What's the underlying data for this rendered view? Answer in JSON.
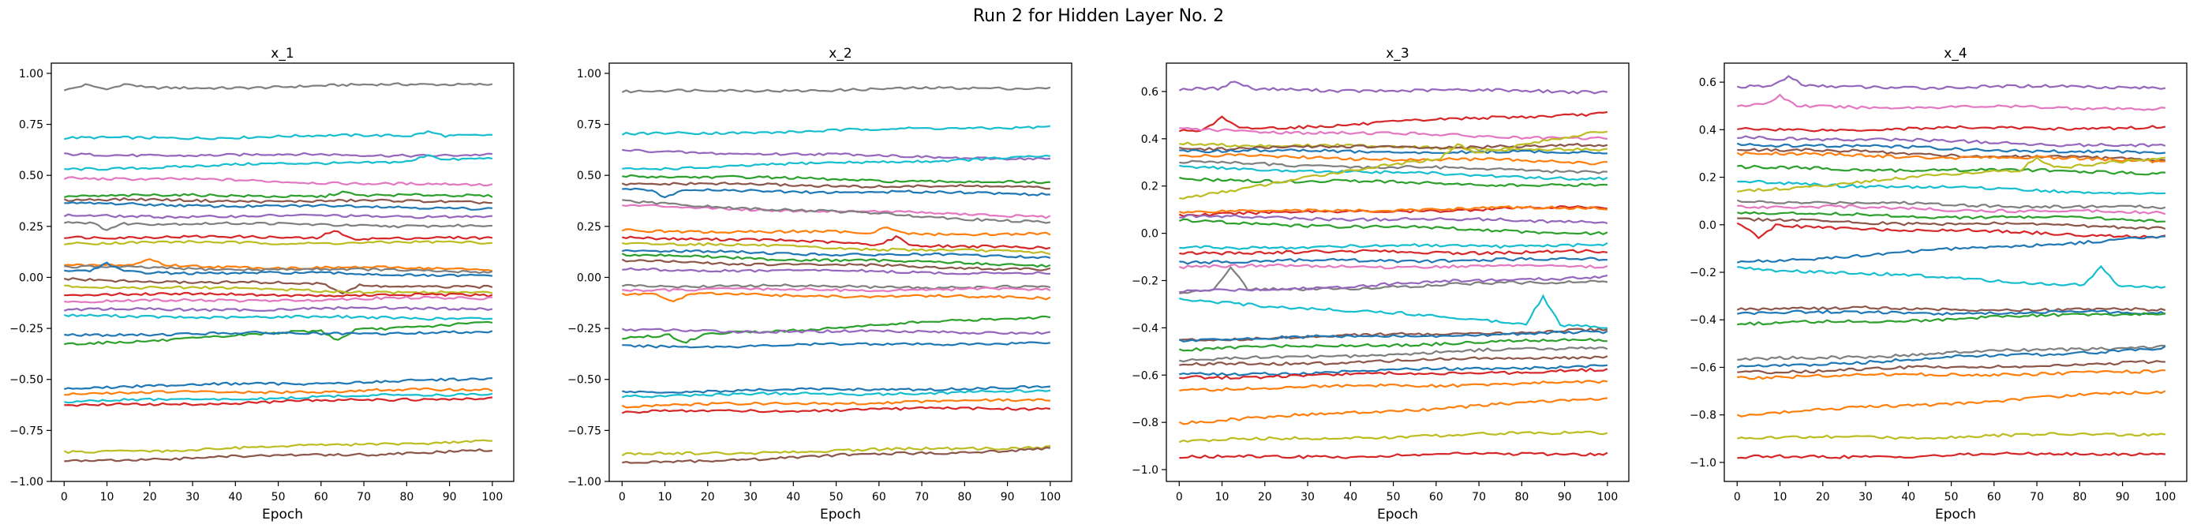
{
  "figure": {
    "suptitle": "Run 2 for Hidden Layer No. 2"
  },
  "chart_data": [
    {
      "type": "line",
      "title": "x_1",
      "xlabel": "Epoch",
      "xlim": [
        -3,
        105
      ],
      "ylim": [
        -1.0,
        1.05
      ],
      "xticks": [
        0,
        10,
        20,
        30,
        40,
        50,
        60,
        70,
        80,
        90,
        100
      ],
      "yticks": [
        1.0,
        0.75,
        0.5,
        0.25,
        0.0,
        -0.25,
        -0.5,
        -0.75,
        -1.0
      ],
      "ytick_labels": [
        "1.00",
        "0.75",
        "0.50",
        "0.25",
        "0.00",
        "−0.25",
        "−0.50",
        "−0.75",
        "−1.00"
      ],
      "series": [
        {
          "color": "#7f7f7f",
          "start": 0.92,
          "end": 0.95,
          "bumps": [
            [
              5,
              0.02
            ],
            [
              15,
              0.02
            ]
          ]
        },
        {
          "color": "#17becf",
          "start": 0.68,
          "end": 0.7,
          "bumps": [
            [
              85,
              0.02
            ]
          ]
        },
        {
          "color": "#9467bd",
          "start": 0.6,
          "end": 0.6
        },
        {
          "color": "#17becf",
          "start": 0.53,
          "end": 0.58,
          "bumps": [
            [
              85,
              0.03
            ]
          ]
        },
        {
          "color": "#e377c2",
          "start": 0.49,
          "end": 0.45
        },
        {
          "color": "#2ca02c",
          "start": 0.4,
          "end": 0.4,
          "bumps": [
            [
              65,
              0.02
            ]
          ]
        },
        {
          "color": "#8c564b",
          "start": 0.38,
          "end": 0.37
        },
        {
          "color": "#1f77b4",
          "start": 0.36,
          "end": 0.34
        },
        {
          "color": "#9467bd",
          "start": 0.3,
          "end": 0.3
        },
        {
          "color": "#7f7f7f",
          "start": 0.27,
          "end": 0.25,
          "bumps": [
            [
              10,
              -0.03
            ]
          ]
        },
        {
          "color": "#d62728",
          "start": 0.2,
          "end": 0.19,
          "bumps": [
            [
              63,
              0.04
            ]
          ]
        },
        {
          "color": "#bcbd22",
          "start": 0.17,
          "end": 0.17
        },
        {
          "color": "#ff7f0e",
          "start": 0.06,
          "end": 0.04,
          "bumps": [
            [
              20,
              0.03
            ]
          ]
        },
        {
          "color": "#7f7f7f",
          "start": 0.05,
          "end": 0.03
        },
        {
          "color": "#1f77b4",
          "start": 0.03,
          "end": 0.01,
          "bumps": [
            [
              10,
              0.04
            ]
          ]
        },
        {
          "color": "#8c564b",
          "start": -0.01,
          "end": -0.05,
          "bumps": [
            [
              65,
              -0.04
            ]
          ]
        },
        {
          "color": "#bcbd22",
          "start": -0.04,
          "end": -0.08
        },
        {
          "color": "#d62728",
          "start": -0.08,
          "end": -0.09
        },
        {
          "color": "#e377c2",
          "start": -0.12,
          "end": -0.1
        },
        {
          "color": "#9467bd",
          "start": -0.16,
          "end": -0.15
        },
        {
          "color": "#17becf",
          "start": -0.19,
          "end": -0.2
        },
        {
          "color": "#2ca02c",
          "start": -0.33,
          "end": -0.22,
          "bumps": [
            [
              64,
              -0.05
            ]
          ]
        },
        {
          "color": "#1f77b4",
          "start": -0.28,
          "end": -0.27
        },
        {
          "color": "#1f77b4",
          "start": -0.54,
          "end": -0.5
        },
        {
          "color": "#ff7f0e",
          "start": -0.57,
          "end": -0.55
        },
        {
          "color": "#17becf",
          "start": -0.61,
          "end": -0.57
        },
        {
          "color": "#d62728",
          "start": -0.63,
          "end": -0.59
        },
        {
          "color": "#bcbd22",
          "start": -0.86,
          "end": -0.8
        },
        {
          "color": "#8c564b",
          "start": -0.9,
          "end": -0.85
        }
      ]
    },
    {
      "type": "line",
      "title": "x_2",
      "xlabel": "Epoch",
      "xlim": [
        -3,
        105
      ],
      "ylim": [
        -1.0,
        1.05
      ],
      "xticks": [
        0,
        10,
        20,
        30,
        40,
        50,
        60,
        70,
        80,
        90,
        100
      ],
      "yticks": [
        1.0,
        0.75,
        0.5,
        0.25,
        0.0,
        -0.25,
        -0.5,
        -0.75,
        -1.0
      ],
      "ytick_labels": [
        "1.00",
        "0.75",
        "0.50",
        "0.25",
        "0.00",
        "−0.25",
        "−0.50",
        "−0.75",
        "−1.00"
      ],
      "series": [
        {
          "color": "#7f7f7f",
          "start": 0.91,
          "end": 0.93
        },
        {
          "color": "#17becf",
          "start": 0.7,
          "end": 0.74
        },
        {
          "color": "#9467bd",
          "start": 0.62,
          "end": 0.58
        },
        {
          "color": "#17becf",
          "start": 0.53,
          "end": 0.59
        },
        {
          "color": "#2ca02c",
          "start": 0.5,
          "end": 0.46
        },
        {
          "color": "#8c564b",
          "start": 0.46,
          "end": 0.44
        },
        {
          "color": "#1f77b4",
          "start": 0.43,
          "end": 0.41,
          "bumps": [
            [
              10,
              -0.04
            ]
          ]
        },
        {
          "color": "#e377c2",
          "start": 0.35,
          "end": 0.3
        },
        {
          "color": "#7f7f7f",
          "start": 0.37,
          "end": 0.27
        },
        {
          "color": "#ff7f0e",
          "start": 0.23,
          "end": 0.21,
          "bumps": [
            [
              62,
              0.03
            ]
          ]
        },
        {
          "color": "#d62728",
          "start": 0.2,
          "end": 0.14,
          "bumps": [
            [
              64,
              0.04
            ]
          ]
        },
        {
          "color": "#bcbd22",
          "start": 0.17,
          "end": 0.12
        },
        {
          "color": "#1f77b4",
          "start": 0.13,
          "end": 0.1
        },
        {
          "color": "#2ca02c",
          "start": 0.11,
          "end": 0.06
        },
        {
          "color": "#8c564b",
          "start": 0.08,
          "end": 0.04
        },
        {
          "color": "#9467bd",
          "start": 0.04,
          "end": 0.02
        },
        {
          "color": "#7f7f7f",
          "start": -0.04,
          "end": -0.05
        },
        {
          "color": "#e377c2",
          "start": -0.06,
          "end": -0.06
        },
        {
          "color": "#ff7f0e",
          "start": -0.08,
          "end": -0.1,
          "bumps": [
            [
              12,
              -0.04
            ]
          ]
        },
        {
          "color": "#2ca02c",
          "start": -0.3,
          "end": -0.19,
          "bumps": [
            [
              15,
              -0.04
            ]
          ]
        },
        {
          "color": "#9467bd",
          "start": -0.26,
          "end": -0.27
        },
        {
          "color": "#1f77b4",
          "start": -0.34,
          "end": -0.32
        },
        {
          "color": "#1f77b4",
          "start": -0.56,
          "end": -0.54
        },
        {
          "color": "#17becf",
          "start": -0.58,
          "end": -0.56
        },
        {
          "color": "#ff7f0e",
          "start": -0.63,
          "end": -0.6
        },
        {
          "color": "#d62728",
          "start": -0.66,
          "end": -0.64
        },
        {
          "color": "#bcbd22",
          "start": -0.87,
          "end": -0.83
        },
        {
          "color": "#8c564b",
          "start": -0.91,
          "end": -0.84
        }
      ]
    },
    {
      "type": "line",
      "title": "x_3",
      "xlabel": "Epoch",
      "xlim": [
        -3,
        105
      ],
      "ylim": [
        -1.05,
        0.72
      ],
      "xticks": [
        0,
        10,
        20,
        30,
        40,
        50,
        60,
        70,
        80,
        90,
        100
      ],
      "yticks": [
        0.6,
        0.4,
        0.2,
        0.0,
        -0.2,
        -0.4,
        -0.6,
        -0.8,
        -1.0
      ],
      "ytick_labels": [
        "0.6",
        "0.4",
        "0.2",
        "0.0",
        "−0.2",
        "−0.4",
        "−0.6",
        "−0.8",
        "−1.0"
      ],
      "series": [
        {
          "color": "#9467bd",
          "start": 0.61,
          "end": 0.6,
          "bumps": [
            [
              13,
              0.03
            ]
          ]
        },
        {
          "color": "#d62728",
          "start": 0.43,
          "end": 0.51,
          "bumps": [
            [
              10,
              0.05
            ]
          ]
        },
        {
          "color": "#e377c2",
          "start": 0.44,
          "end": 0.4
        },
        {
          "color": "#bcbd22",
          "start": 0.38,
          "end": 0.35
        },
        {
          "color": "#8c564b",
          "start": 0.36,
          "end": 0.37
        },
        {
          "color": "#1f77b4",
          "start": 0.35,
          "end": 0.34
        },
        {
          "color": "#ff7f0e",
          "start": 0.33,
          "end": 0.3
        },
        {
          "color": "#7f7f7f",
          "start": 0.3,
          "end": 0.26
        },
        {
          "color": "#17becf",
          "start": 0.28,
          "end": 0.23
        },
        {
          "color": "#2ca02c",
          "start": 0.23,
          "end": 0.2
        },
        {
          "color": "#bcbd22",
          "start": 0.15,
          "end": 0.43,
          "bumps": [
            [
              65,
              0.05
            ]
          ]
        },
        {
          "color": "#d62728",
          "start": 0.08,
          "end": 0.11
        },
        {
          "color": "#ff7f0e",
          "start": 0.09,
          "end": 0.11
        },
        {
          "color": "#9467bd",
          "start": 0.07,
          "end": 0.05
        },
        {
          "color": "#2ca02c",
          "start": 0.05,
          "end": 0.0
        },
        {
          "color": "#17becf",
          "start": -0.06,
          "end": -0.05
        },
        {
          "color": "#d62728",
          "start": -0.08,
          "end": -0.08
        },
        {
          "color": "#1f77b4",
          "start": -0.12,
          "end": -0.11
        },
        {
          "color": "#e377c2",
          "start": -0.14,
          "end": -0.14
        },
        {
          "color": "#7f7f7f",
          "start": -0.25,
          "end": -0.2,
          "bumps": [
            [
              12,
              0.1
            ]
          ]
        },
        {
          "color": "#9467bd",
          "start": -0.25,
          "end": -0.18
        },
        {
          "color": "#17becf",
          "start": -0.28,
          "end": -0.4,
          "bumps": [
            [
              85,
              0.12
            ]
          ]
        },
        {
          "color": "#8c564b",
          "start": -0.45,
          "end": -0.41
        },
        {
          "color": "#1f77b4",
          "start": -0.45,
          "end": -0.42
        },
        {
          "color": "#2ca02c",
          "start": -0.49,
          "end": -0.45
        },
        {
          "color": "#7f7f7f",
          "start": -0.54,
          "end": -0.48
        },
        {
          "color": "#8c564b",
          "start": -0.56,
          "end": -0.52
        },
        {
          "color": "#1f77b4",
          "start": -0.6,
          "end": -0.56
        },
        {
          "color": "#d62728",
          "start": -0.61,
          "end": -0.58
        },
        {
          "color": "#ff7f0e",
          "start": -0.66,
          "end": -0.63
        },
        {
          "color": "#ff7f0e",
          "start": -0.8,
          "end": -0.7
        },
        {
          "color": "#bcbd22",
          "start": -0.88,
          "end": -0.84
        },
        {
          "color": "#d62728",
          "start": -0.95,
          "end": -0.93
        }
      ]
    },
    {
      "type": "line",
      "title": "x_4",
      "xlabel": "Epoch",
      "xlim": [
        -3,
        105
      ],
      "ylim": [
        -1.08,
        0.68
      ],
      "xticks": [
        0,
        10,
        20,
        30,
        40,
        50,
        60,
        70,
        80,
        90,
        100
      ],
      "yticks": [
        0.6,
        0.4,
        0.2,
        0.0,
        -0.2,
        -0.4,
        -0.6,
        -0.8,
        -1.0
      ],
      "ytick_labels": [
        "0.6",
        "0.4",
        "0.2",
        "0.0",
        "−0.2",
        "−0.4",
        "−0.6",
        "−0.8",
        "−1.0"
      ],
      "series": [
        {
          "color": "#9467bd",
          "start": 0.58,
          "end": 0.58,
          "bumps": [
            [
              12,
              0.04
            ]
          ]
        },
        {
          "color": "#e377c2",
          "start": 0.5,
          "end": 0.49,
          "bumps": [
            [
              10,
              0.04
            ]
          ]
        },
        {
          "color": "#d62728",
          "start": 0.4,
          "end": 0.41
        },
        {
          "color": "#9467bd",
          "start": 0.37,
          "end": 0.33
        },
        {
          "color": "#1f77b4",
          "start": 0.34,
          "end": 0.3
        },
        {
          "color": "#8c564b",
          "start": 0.32,
          "end": 0.27
        },
        {
          "color": "#ff7f0e",
          "start": 0.3,
          "end": 0.27
        },
        {
          "color": "#2ca02c",
          "start": 0.24,
          "end": 0.22
        },
        {
          "color": "#17becf",
          "start": 0.18,
          "end": 0.13
        },
        {
          "color": "#bcbd22",
          "start": 0.14,
          "end": 0.28,
          "bumps": [
            [
              70,
              0.05
            ]
          ]
        },
        {
          "color": "#7f7f7f",
          "start": 0.1,
          "end": 0.07
        },
        {
          "color": "#e377c2",
          "start": 0.08,
          "end": 0.05
        },
        {
          "color": "#2ca02c",
          "start": 0.05,
          "end": 0.02
        },
        {
          "color": "#8c564b",
          "start": 0.02,
          "end": -0.01
        },
        {
          "color": "#d62728",
          "start": 0.0,
          "end": -0.05,
          "bumps": [
            [
              5,
              -0.06
            ]
          ]
        },
        {
          "color": "#1f77b4",
          "start": -0.16,
          "end": -0.05
        },
        {
          "color": "#17becf",
          "start": -0.18,
          "end": -0.27,
          "bumps": [
            [
              85,
              0.08
            ]
          ]
        },
        {
          "color": "#8c564b",
          "start": -0.35,
          "end": -0.36
        },
        {
          "color": "#1f77b4",
          "start": -0.37,
          "end": -0.37
        },
        {
          "color": "#2ca02c",
          "start": -0.42,
          "end": -0.37
        },
        {
          "color": "#7f7f7f",
          "start": -0.57,
          "end": -0.51
        },
        {
          "color": "#1f77b4",
          "start": -0.6,
          "end": -0.52
        },
        {
          "color": "#8c564b",
          "start": -0.62,
          "end": -0.58
        },
        {
          "color": "#ff7f0e",
          "start": -0.64,
          "end": -0.62
        },
        {
          "color": "#ff7f0e",
          "start": -0.8,
          "end": -0.7
        },
        {
          "color": "#bcbd22",
          "start": -0.9,
          "end": -0.88
        },
        {
          "color": "#d62728",
          "start": -0.98,
          "end": -0.96
        }
      ]
    }
  ]
}
